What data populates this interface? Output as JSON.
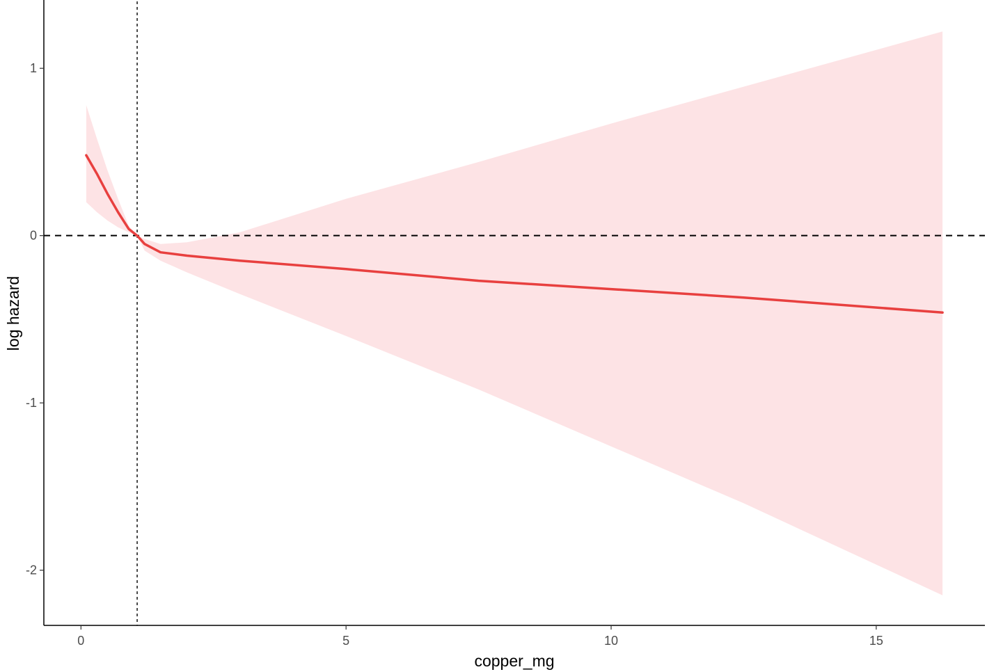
{
  "chart_data": {
    "type": "line",
    "title": "",
    "xlabel": "copper_mg",
    "ylabel": "log hazard",
    "xlim": [
      -0.7,
      17.05
    ],
    "ylim": [
      -2.33,
      1.4
    ],
    "x_ticks": [
      {
        "value": 0,
        "label": "0"
      },
      {
        "value": 5,
        "label": "5"
      },
      {
        "value": 10,
        "label": "10"
      },
      {
        "value": 15,
        "label": "15"
      }
    ],
    "y_ticks": [
      {
        "value": 1,
        "label": "1"
      },
      {
        "value": 0,
        "label": "0"
      },
      {
        "value": -1,
        "label": "-1"
      },
      {
        "value": -2,
        "label": "-2"
      }
    ],
    "grid": false,
    "legend": "none",
    "reference_lines": {
      "horizontal_y": 0,
      "vertical_x": 1.06
    },
    "series": [
      {
        "x": [
          0.1,
          0.3,
          0.5,
          0.7,
          0.9,
          1.06,
          1.2,
          1.5,
          2.0,
          3.0,
          5.0,
          7.5,
          10.0,
          12.5,
          16.25
        ],
        "y": [
          0.48,
          0.37,
          0.25,
          0.14,
          0.04,
          0.0,
          -0.05,
          -0.1,
          -0.12,
          -0.15,
          -0.2,
          -0.27,
          -0.32,
          -0.37,
          -0.46
        ],
        "lower": [
          0.2,
          0.14,
          0.09,
          0.05,
          0.02,
          0.0,
          -0.09,
          -0.15,
          -0.22,
          -0.35,
          -0.6,
          -0.92,
          -1.26,
          -1.6,
          -2.15
        ],
        "upper": [
          0.78,
          0.58,
          0.39,
          0.22,
          0.06,
          0.0,
          -0.02,
          -0.05,
          -0.04,
          0.02,
          0.22,
          0.44,
          0.67,
          0.89,
          1.22
        ]
      }
    ],
    "colors": {
      "line": "#e8403f",
      "ribbon": "#fde3e5",
      "reference": "#000000",
      "axis": "#000000",
      "tick_text": "#4d4d4d"
    }
  }
}
